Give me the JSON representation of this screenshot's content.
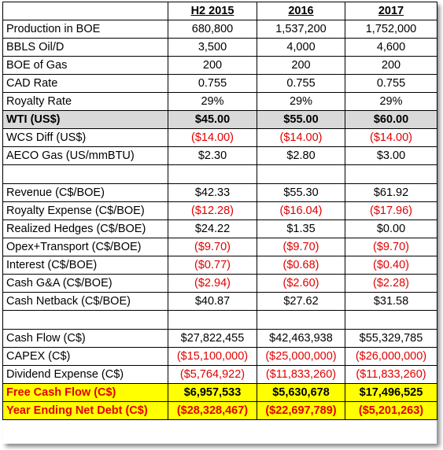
{
  "headers": [
    "",
    "H2 2015",
    "2016",
    "2017"
  ],
  "section1": [
    {
      "label": "Production in BOE",
      "values": [
        "680,800",
        "1,537,200",
        "1,752,000"
      ]
    },
    {
      "label": "BBLS Oil/D",
      "values": [
        "3,500",
        "4,000",
        "4,600"
      ]
    },
    {
      "label": "BOE of Gas",
      "values": [
        "200",
        "200",
        "200"
      ]
    },
    {
      "label": "CAD Rate",
      "values": [
        "0.755",
        "0.755",
        "0.755"
      ]
    },
    {
      "label": "Royalty Rate",
      "values": [
        "29%",
        "29%",
        "29%"
      ]
    },
    {
      "label": "WTI (US$)",
      "values": [
        "$45.00",
        "$55.00",
        "$60.00"
      ]
    },
    {
      "label": "WCS Diff (US$)",
      "values": [
        "($14.00)",
        "($14.00)",
        "($14.00)"
      ]
    },
    {
      "label": "AECO Gas (US/mmBTU)",
      "values": [
        "$2.30",
        "$2.80",
        "$3.00"
      ]
    }
  ],
  "section2": [
    {
      "label": "Revenue (C$/BOE)",
      "values": [
        "$42.33",
        "$55.30",
        "$61.92"
      ]
    },
    {
      "label": "Royalty Expense (C$/BOE)",
      "values": [
        "($12.28)",
        "($16.04)",
        "($17.96)"
      ]
    },
    {
      "label": "Realized Hedges (C$/BOE)",
      "values": [
        "$24.22",
        "$1.35",
        "$0.00"
      ]
    },
    {
      "label": "Opex+Transport (C$/BOE)",
      "values": [
        "($9.70)",
        "($9.70)",
        "($9.70)"
      ]
    },
    {
      "label": "Interest (C$/BOE)",
      "values": [
        "($0.77)",
        "($0.68)",
        "($0.40)"
      ]
    },
    {
      "label": "Cash G&A (C$/BOE)",
      "values": [
        "($2.94)",
        "($2.60)",
        "($2.28)"
      ]
    },
    {
      "label": "Cash Netback (C$/BOE)",
      "values": [
        "$40.87",
        "$27.62",
        "$31.58"
      ]
    }
  ],
  "section3": [
    {
      "label": "Cash Flow (C$)",
      "values": [
        "$27,822,455",
        "$42,463,938",
        "$55,329,785"
      ]
    },
    {
      "label": "CAPEX (C$)",
      "values": [
        "($15,100,000)",
        "($25,000,000)",
        "($26,000,000)"
      ]
    },
    {
      "label": "Dividend Expense  (C$)",
      "values": [
        "($5,764,922)",
        "($11,833,260)",
        "($11,833,260)"
      ]
    },
    {
      "label": "Free Cash Flow  (C$)",
      "values": [
        "$6,957,533",
        "$5,630,678",
        "$17,496,525"
      ]
    },
    {
      "label": "Year Ending Net Debt  (C$)",
      "values": [
        "($28,328,467)",
        "($22,697,789)",
        "($5,201,263)"
      ]
    }
  ]
}
